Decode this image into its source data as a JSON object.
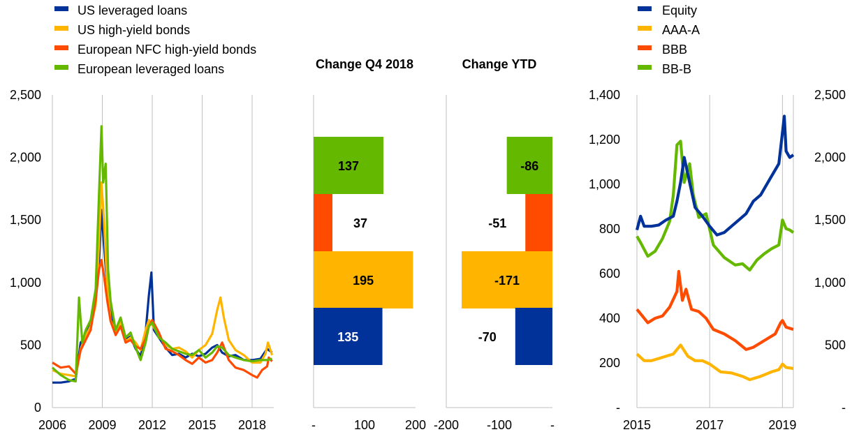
{
  "colors": {
    "blue": "#003299",
    "yellow": "#FFB400",
    "orange": "#FF4B00",
    "green": "#65B800"
  },
  "chart_data": [
    {
      "type": "line",
      "xlim": [
        2006,
        2019.3
      ],
      "ylim": [
        0,
        2500
      ],
      "x_ticks": [
        "2006",
        "2009",
        "2012",
        "2015",
        "2018"
      ],
      "y_ticks": [
        "0",
        "500",
        "1,000",
        "1,500",
        "2,000",
        "2,500"
      ],
      "legend_placement": "top-left",
      "series": [
        {
          "name": "US leveraged loans",
          "color": "#003299",
          "x": [
            2006.0,
            2006.5,
            2007.0,
            2007.4,
            2007.7,
            2008.0,
            2008.3,
            2008.6,
            2008.8,
            2008.95,
            2009.1,
            2009.3,
            2009.5,
            2009.8,
            2010.1,
            2010.4,
            2010.7,
            2011.0,
            2011.3,
            2011.6,
            2011.8,
            2011.95,
            2012.1,
            2012.4,
            2012.8,
            2013.2,
            2013.6,
            2014.0,
            2014.4,
            2014.8,
            2015.2,
            2015.6,
            2015.9,
            2016.2,
            2016.6,
            2017.0,
            2017.5,
            2018.0,
            2018.5,
            2018.9,
            2019.1,
            2019.2
          ],
          "y": [
            200,
            200,
            210,
            230,
            520,
            560,
            680,
            900,
            1150,
            1580,
            1300,
            950,
            760,
            610,
            680,
            540,
            570,
            470,
            410,
            600,
            900,
            1080,
            620,
            560,
            480,
            420,
            430,
            400,
            430,
            410,
            430,
            480,
            500,
            440,
            410,
            420,
            380,
            380,
            390,
            470,
            450,
            440
          ]
        },
        {
          "name": "US high-yield bonds",
          "color": "#FFB400",
          "x": [
            2006.0,
            2006.5,
            2007.0,
            2007.4,
            2007.7,
            2008.0,
            2008.3,
            2008.6,
            2008.8,
            2008.95,
            2009.1,
            2009.3,
            2009.5,
            2009.8,
            2010.1,
            2010.4,
            2010.7,
            2011.0,
            2011.3,
            2011.6,
            2011.8,
            2012.0,
            2012.4,
            2012.8,
            2013.2,
            2013.6,
            2014.0,
            2014.4,
            2014.8,
            2015.2,
            2015.6,
            2015.9,
            2016.1,
            2016.3,
            2016.6,
            2017.0,
            2017.5,
            2018.0,
            2018.5,
            2018.8,
            2018.95,
            2019.2
          ],
          "y": [
            300,
            270,
            260,
            250,
            470,
            570,
            650,
            820,
            1300,
            1800,
            1500,
            950,
            700,
            600,
            680,
            530,
            560,
            520,
            460,
            620,
            700,
            660,
            580,
            500,
            470,
            480,
            450,
            400,
            460,
            500,
            590,
            780,
            880,
            720,
            540,
            460,
            420,
            360,
            360,
            430,
            520,
            420
          ]
        },
        {
          "name": "European NFC high-yield bonds",
          "color": "#FF4B00",
          "x": [
            2006.0,
            2006.5,
            2007.0,
            2007.4,
            2007.7,
            2008.0,
            2008.3,
            2008.6,
            2008.8,
            2008.95,
            2009.1,
            2009.3,
            2009.5,
            2009.8,
            2010.1,
            2010.4,
            2010.7,
            2011.0,
            2011.3,
            2011.6,
            2011.8,
            2012.0,
            2012.4,
            2012.8,
            2013.2,
            2013.6,
            2014.0,
            2014.4,
            2014.8,
            2015.2,
            2015.6,
            2015.9,
            2016.2,
            2016.6,
            2017.0,
            2017.5,
            2018.0,
            2018.3,
            2018.6,
            2018.9,
            2019.0,
            2019.2
          ],
          "y": [
            360,
            320,
            330,
            270,
            460,
            540,
            620,
            860,
            1100,
            1180,
            1050,
            850,
            690,
            580,
            650,
            520,
            540,
            490,
            470,
            550,
            650,
            700,
            600,
            470,
            450,
            420,
            380,
            350,
            400,
            360,
            380,
            440,
            520,
            380,
            320,
            300,
            260,
            240,
            300,
            330,
            400,
            370
          ]
        },
        {
          "name": "European leveraged loans",
          "color": "#65B800",
          "x": [
            2006.0,
            2006.5,
            2007.0,
            2007.4,
            2007.6,
            2007.8,
            2008.0,
            2008.3,
            2008.6,
            2008.8,
            2008.95,
            2009.05,
            2009.2,
            2009.35,
            2009.5,
            2009.8,
            2010.1,
            2010.4,
            2010.7,
            2011.0,
            2011.3,
            2011.6,
            2011.8,
            2012.0,
            2012.4,
            2012.8,
            2013.2,
            2013.6,
            2014.0,
            2014.4,
            2014.8,
            2015.2,
            2015.6,
            2015.9,
            2016.2,
            2016.6,
            2017.0,
            2017.5,
            2018.0,
            2018.5,
            2018.9,
            2019.2
          ],
          "y": [
            320,
            260,
            220,
            210,
            880,
            520,
            620,
            700,
            950,
            1700,
            2250,
            1800,
            1950,
            1100,
            850,
            620,
            720,
            560,
            600,
            480,
            380,
            520,
            650,
            680,
            560,
            520,
            470,
            450,
            430,
            420,
            460,
            400,
            440,
            490,
            480,
            420,
            400,
            380,
            370,
            380,
            380,
            390
          ]
        }
      ]
    },
    {
      "type": "bar",
      "orientation": "horizontal",
      "title": "Change Q4 2018",
      "xlim": [
        0,
        200
      ],
      "x_ticks": [
        "-",
        "100",
        "200"
      ],
      "categories": [
        "European leveraged loans",
        "European NFC high-yield bonds",
        "US high-yield bonds",
        "US leveraged loans"
      ],
      "values": [
        137,
        37,
        195,
        135
      ],
      "labels": [
        "137",
        "37",
        "195",
        "135"
      ]
    },
    {
      "type": "bar",
      "orientation": "horizontal",
      "title": "Change YTD",
      "xlim": [
        -200,
        0
      ],
      "x_ticks": [
        "-200",
        "-100",
        "-"
      ],
      "categories": [
        "European leveraged loans",
        "European NFC high-yield bonds",
        "US high-yield bonds",
        "US leveraged loans"
      ],
      "values": [
        -86,
        -51,
        -171,
        -70
      ],
      "labels": [
        "-86",
        "-51",
        "-171",
        "-70"
      ]
    },
    {
      "type": "line",
      "xlim": [
        2015,
        2019.3
      ],
      "ylim_left": [
        0,
        1400
      ],
      "ylim_right": [
        0,
        2500
      ],
      "x_ticks": [
        "2015",
        "2017",
        "2019"
      ],
      "y_ticks_left": [
        "-",
        "200",
        "400",
        "600",
        "800",
        "1,000",
        "1,200",
        "1,400"
      ],
      "y_ticks_right": [
        "-",
        "500",
        "1,000",
        "1,500",
        "2,000",
        "2,500"
      ],
      "legend_placement": "top-left",
      "series": [
        {
          "name": "Equity",
          "axis": "right",
          "color": "#003299",
          "x": [
            2015.0,
            2015.1,
            2015.2,
            2015.4,
            2015.6,
            2015.8,
            2016.0,
            2016.1,
            2016.2,
            2016.3,
            2016.45,
            2016.6,
            2016.8,
            2017.0,
            2017.2,
            2017.4,
            2017.6,
            2017.8,
            2018.0,
            2018.2,
            2018.4,
            2018.6,
            2018.8,
            2018.9,
            2019.0,
            2019.05,
            2019.1,
            2019.2,
            2019.3
          ],
          "y": [
            1420,
            1530,
            1450,
            1450,
            1460,
            1500,
            1530,
            1650,
            1800,
            2000,
            1800,
            1600,
            1530,
            1450,
            1380,
            1400,
            1450,
            1500,
            1550,
            1650,
            1700,
            1800,
            1900,
            1950,
            2200,
            2330,
            2050,
            2000,
            2020
          ]
        },
        {
          "name": "AAA-A",
          "axis": "left",
          "color": "#FFB400",
          "x": [
            2015.0,
            2015.2,
            2015.4,
            2015.6,
            2015.8,
            2016.0,
            2016.2,
            2016.4,
            2016.6,
            2016.8,
            2017.0,
            2017.3,
            2017.6,
            2017.9,
            2018.1,
            2018.4,
            2018.7,
            2018.9,
            2019.0,
            2019.1,
            2019.3
          ],
          "y": [
            240,
            210,
            210,
            220,
            230,
            240,
            280,
            230,
            210,
            210,
            195,
            160,
            155,
            140,
            125,
            140,
            160,
            170,
            195,
            180,
            175
          ]
        },
        {
          "name": "BBB",
          "axis": "left",
          "color": "#FF4B00",
          "x": [
            2015.0,
            2015.1,
            2015.3,
            2015.5,
            2015.7,
            2015.9,
            2016.1,
            2016.15,
            2016.25,
            2016.35,
            2016.5,
            2016.7,
            2016.9,
            2017.1,
            2017.4,
            2017.7,
            2018.0,
            2018.2,
            2018.5,
            2018.8,
            2018.95,
            2019.0,
            2019.1,
            2019.3
          ],
          "y": [
            440,
            420,
            380,
            400,
            410,
            450,
            520,
            610,
            480,
            530,
            440,
            430,
            400,
            350,
            330,
            300,
            260,
            270,
            300,
            330,
            380,
            390,
            360,
            350
          ]
        },
        {
          "name": "BB-B",
          "axis": "right",
          "color": "#65B800",
          "x": [
            2015.0,
            2015.1,
            2015.3,
            2015.5,
            2015.7,
            2015.9,
            2016.0,
            2016.1,
            2016.2,
            2016.3,
            2016.45,
            2016.55,
            2016.7,
            2016.9,
            2017.1,
            2017.4,
            2017.7,
            2017.9,
            2018.1,
            2018.3,
            2018.5,
            2018.7,
            2018.9,
            2019.0,
            2019.1,
            2019.2,
            2019.3
          ],
          "y": [
            1370,
            1320,
            1210,
            1250,
            1350,
            1490,
            1700,
            2100,
            2130,
            1800,
            1950,
            1700,
            1520,
            1550,
            1300,
            1200,
            1140,
            1150,
            1100,
            1180,
            1230,
            1270,
            1300,
            1500,
            1430,
            1420,
            1400
          ]
        }
      ]
    }
  ]
}
